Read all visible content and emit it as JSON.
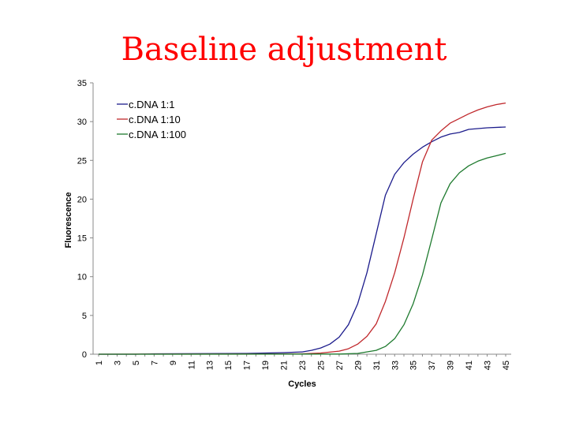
{
  "slide": {
    "title": "Baseline adjustment"
  },
  "chart_data": {
    "type": "line",
    "title": "",
    "xlabel": "Cycles",
    "ylabel": "Fluorescence",
    "ylim": [
      0,
      35
    ],
    "yticks": [
      0,
      5,
      10,
      15,
      20,
      25,
      30,
      35
    ],
    "xlim": [
      1,
      45
    ],
    "x_tick_labels": [
      "1",
      "3",
      "5",
      "7",
      "9",
      "11",
      "13",
      "15",
      "17",
      "19",
      "21",
      "23",
      "25",
      "27",
      "29",
      "31",
      "33",
      "35",
      "37",
      "39",
      "41",
      "43",
      "45"
    ],
    "grid": false,
    "legend_position": "top-left",
    "series": [
      {
        "name": "c.DNA 1:1",
        "color": "#1c1c8c",
        "points": [
          [
            1,
            0
          ],
          [
            5,
            0
          ],
          [
            7,
            0.05
          ],
          [
            17,
            0.1
          ],
          [
            19,
            0.15
          ],
          [
            21,
            0.2
          ],
          [
            23,
            0.3
          ],
          [
            24,
            0.5
          ],
          [
            25,
            0.8
          ],
          [
            26,
            1.3
          ],
          [
            27,
            2.2
          ],
          [
            28,
            3.8
          ],
          [
            29,
            6.5
          ],
          [
            30,
            10.5
          ],
          [
            31,
            15.5
          ],
          [
            32,
            20.5
          ],
          [
            33,
            23.2
          ],
          [
            34,
            24.7
          ],
          [
            35,
            25.8
          ],
          [
            36,
            26.7
          ],
          [
            37,
            27.4
          ],
          [
            38,
            28.0
          ],
          [
            39,
            28.4
          ],
          [
            40,
            28.6
          ],
          [
            41,
            29.0
          ],
          [
            42,
            29.1
          ],
          [
            43,
            29.2
          ],
          [
            45,
            29.3
          ]
        ]
      },
      {
        "name": "c.DNA 1:10",
        "color": "#c0282c",
        "points": [
          [
            1,
            0
          ],
          [
            23,
            0.05
          ],
          [
            25,
            0.15
          ],
          [
            27,
            0.4
          ],
          [
            28,
            0.7
          ],
          [
            29,
            1.3
          ],
          [
            30,
            2.3
          ],
          [
            31,
            3.9
          ],
          [
            32,
            6.8
          ],
          [
            33,
            10.5
          ],
          [
            34,
            15.0
          ],
          [
            35,
            20.0
          ],
          [
            36,
            24.8
          ],
          [
            37,
            27.6
          ],
          [
            38,
            28.8
          ],
          [
            39,
            29.8
          ],
          [
            40,
            30.4
          ],
          [
            41,
            31.0
          ],
          [
            42,
            31.5
          ],
          [
            43,
            31.9
          ],
          [
            44,
            32.2
          ],
          [
            45,
            32.4
          ]
        ]
      },
      {
        "name": "c.DNA 1:100",
        "color": "#1e7a2e",
        "points": [
          [
            1,
            0
          ],
          [
            27,
            0.02
          ],
          [
            29,
            0.1
          ],
          [
            31,
            0.5
          ],
          [
            32,
            1.0
          ],
          [
            33,
            2.0
          ],
          [
            34,
            3.8
          ],
          [
            35,
            6.5
          ],
          [
            36,
            10.2
          ],
          [
            37,
            14.8
          ],
          [
            38,
            19.5
          ],
          [
            39,
            22.0
          ],
          [
            40,
            23.4
          ],
          [
            41,
            24.3
          ],
          [
            42,
            24.9
          ],
          [
            43,
            25.3
          ],
          [
            44,
            25.6
          ],
          [
            45,
            25.9
          ]
        ]
      }
    ]
  }
}
